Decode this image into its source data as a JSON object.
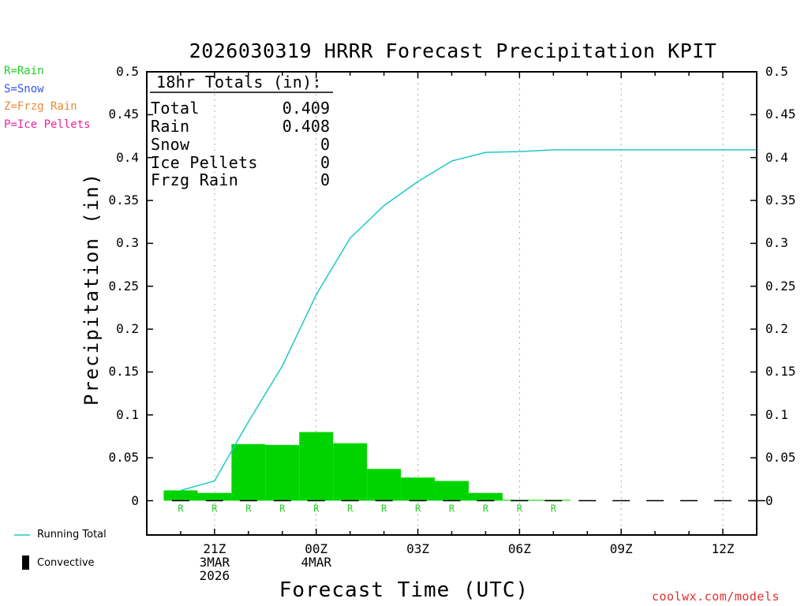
{
  "title": "2026030319 HRRR Forecast Precipitation KPIT",
  "type_legend": [
    {
      "text": "R=Rain",
      "color": "#22cc22"
    },
    {
      "text": "S=Snow",
      "color": "#3355ee"
    },
    {
      "text": "Z=Frzg Rain",
      "color": "#ee8833"
    },
    {
      "text": "P=Ice Pellets",
      "color": "#ee2299"
    }
  ],
  "totals_box": {
    "header": "18hr Totals (in):",
    "rows": [
      {
        "label": "Total",
        "value": "0.409"
      },
      {
        "label": "Rain",
        "value": "0.408"
      },
      {
        "label": "Snow",
        "value": "0"
      },
      {
        "label": "Ice Pellets",
        "value": "0"
      },
      {
        "label": "Frzg Rain",
        "value": "0"
      }
    ]
  },
  "bottom_legend": {
    "running_total": "Running Total",
    "convective": "Convective"
  },
  "credit": "coolwx.com/models",
  "colors": {
    "bar": "#00d400",
    "line": "#20c8c8",
    "type_marker": "#22cc22"
  },
  "chart_data": {
    "type": "bar",
    "title": "2026030319 HRRR Forecast Precipitation KPIT",
    "xlabel": "Forecast Time (UTC)",
    "ylabel": "Precipitation (in)",
    "ylim": [
      -0.04,
      0.5
    ],
    "y_ticks": [
      0,
      0.05,
      0.1,
      0.15,
      0.2,
      0.25,
      0.3,
      0.35,
      0.4,
      0.45,
      0.5
    ],
    "y_tick_labels": [
      "0",
      "0.05",
      "0.1",
      "0.15",
      "0.2",
      "0.25",
      "0.3",
      "0.35",
      "0.4",
      "0.45",
      "0.5"
    ],
    "x_range_hours": [
      0,
      18
    ],
    "x_ticks": [
      {
        "hour": 2,
        "label": "21Z",
        "date": "3MAR",
        "year": "2026"
      },
      {
        "hour": 5,
        "label": "00Z",
        "date": "4MAR",
        "year": ""
      },
      {
        "hour": 8,
        "label": "03Z",
        "date": "",
        "year": ""
      },
      {
        "hour": 11,
        "label": "06Z",
        "date": "",
        "year": ""
      },
      {
        "hour": 14,
        "label": "09Z",
        "date": "",
        "year": ""
      },
      {
        "hour": 17,
        "label": "12Z",
        "date": "",
        "year": ""
      }
    ],
    "hourly": {
      "hours": [
        1,
        2,
        3,
        4,
        5,
        6,
        7,
        8,
        9,
        10,
        11,
        12,
        13,
        14,
        15,
        16,
        17,
        18
      ],
      "values": [
        0.012,
        0.009,
        0.066,
        0.065,
        0.08,
        0.067,
        0.037,
        0.027,
        0.023,
        0.009,
        0.001,
        0.001,
        0.0,
        0.0,
        0.0,
        0.0,
        0.0,
        0.0
      ],
      "types": [
        "R",
        "R",
        "R",
        "R",
        "R",
        "R",
        "R",
        "R",
        "R",
        "R",
        "R",
        "R",
        "",
        "",
        "",
        "",
        "",
        ""
      ]
    },
    "series": [
      {
        "name": "Running Total",
        "x": [
          1,
          2,
          3,
          4,
          5,
          6,
          7,
          8,
          9,
          10,
          11,
          12,
          13,
          14,
          15,
          16,
          17,
          18
        ],
        "values": [
          0.012,
          0.023,
          0.092,
          0.157,
          0.24,
          0.306,
          0.344,
          0.372,
          0.396,
          0.406,
          0.407,
          0.409,
          0.409,
          0.409,
          0.409,
          0.409,
          0.409,
          0.409
        ]
      }
    ]
  }
}
